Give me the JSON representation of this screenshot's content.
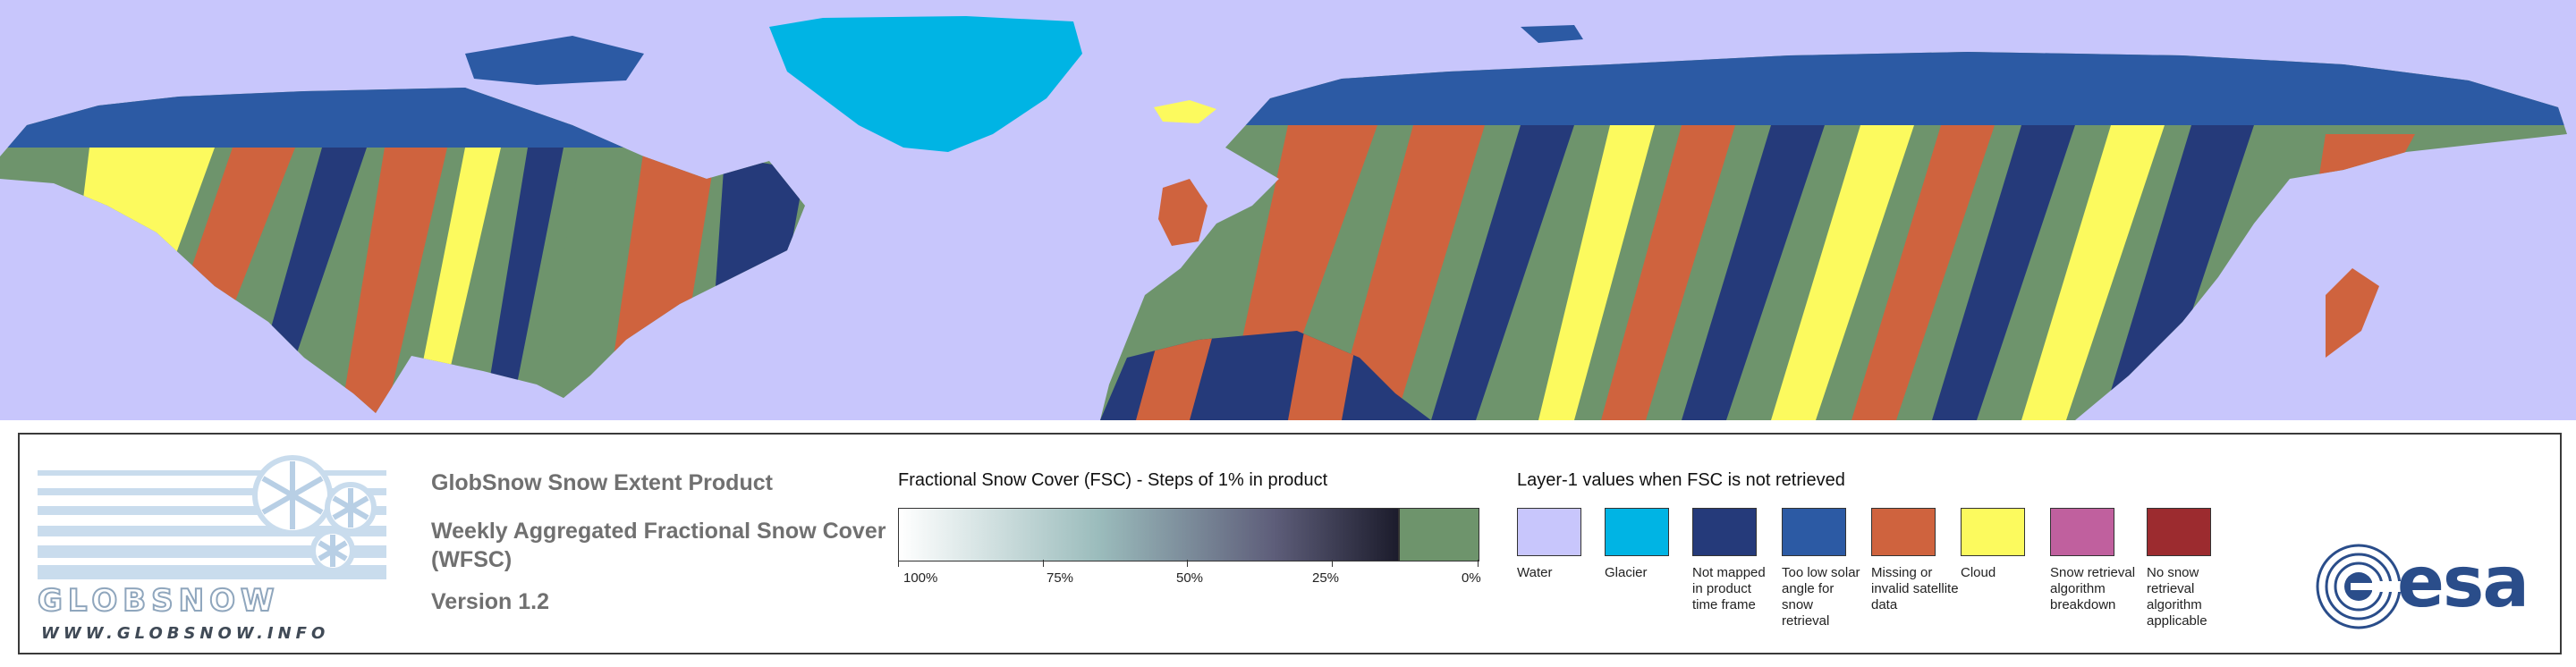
{
  "logo": {
    "wordmark": "GLOBSNOW",
    "url": "WWW.GLOBSNOW.INFO"
  },
  "product": {
    "title": "GlobSnow Snow Extent Product",
    "subtitle": "Weekly Aggregated Fractional Snow Cover (WFSC)",
    "version": "Version 1.2"
  },
  "fsc_legend": {
    "title": "Fractional Snow Cover (FSC) - Steps of 1% in product",
    "ticks": [
      "100%",
      "75%",
      "50%",
      "25%",
      "0%"
    ],
    "ramp_start_color": "#ffffff",
    "ramp_mid_color": "#9bbcbc",
    "ramp_end_color": "#1c1c2c",
    "zero_color": "#6e946c"
  },
  "layer1_legend": {
    "title": "Layer-1 values when FSC is not retrieved",
    "items": [
      {
        "label": "Water",
        "color": "#c8c6fc"
      },
      {
        "label": "Glacier",
        "color": "#00b4e4"
      },
      {
        "label": "Not mapped in product time frame",
        "color": "#253a7a"
      },
      {
        "label": "Too low solar angle for snow retrieval",
        "color": "#2c5aa4"
      },
      {
        "label": "Missing or invalid satellite data",
        "color": "#cf633e"
      },
      {
        "label": "Cloud",
        "color": "#fcfa5e"
      },
      {
        "label": "Snow retrieval algorithm breakdown",
        "color": "#c0609e"
      },
      {
        "label": "No snow retrieval algorithm applicable",
        "color": "#9c2b2f"
      }
    ]
  },
  "esa_logo": {
    "text": "esa"
  },
  "map_colors": {
    "water": "#c8c6fc",
    "glacier": "#00b4e4",
    "not_mapped": "#253a7a",
    "low_sun": "#2c5aa4",
    "missing": "#cf633e",
    "cloud": "#fcfa5e",
    "snow_free": "#6e946c"
  }
}
